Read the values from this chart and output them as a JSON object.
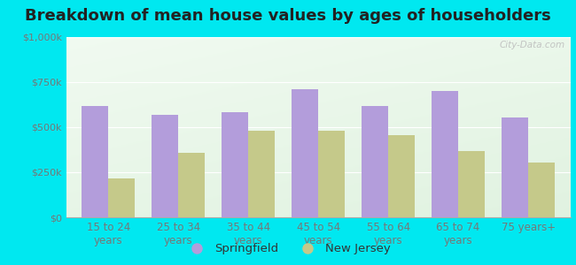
{
  "title": "Breakdown of mean house values by ages of householders",
  "categories": [
    "15 to 24\nyears",
    "25 to 34\nyears",
    "35 to 44\nyears",
    "45 to 54\nyears",
    "55 to 64\nyears",
    "65 to 74\nyears",
    "75 years+"
  ],
  "springfield_values": [
    620000,
    570000,
    585000,
    710000,
    620000,
    700000,
    555000
  ],
  "newjersey_values": [
    215000,
    360000,
    480000,
    480000,
    455000,
    370000,
    305000
  ],
  "springfield_color": "#b39ddb",
  "newjersey_color": "#c5c98a",
  "background_outer": "#00e8f0",
  "background_inner": "#e0f0e8",
  "ylim": [
    0,
    1000000
  ],
  "yticks": [
    0,
    250000,
    500000,
    750000,
    1000000
  ],
  "ytick_labels": [
    "$0",
    "$250k",
    "$500k",
    "$750k",
    "$1,000k"
  ],
  "legend_labels": [
    "Springfield",
    "New Jersey"
  ],
  "watermark": "City-Data.com",
  "title_fontsize": 13,
  "axis_label_fontsize": 8.5,
  "tick_fontsize": 8,
  "legend_fontsize": 9.5
}
